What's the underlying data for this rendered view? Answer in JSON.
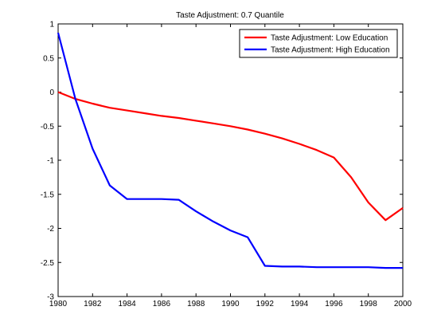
{
  "chart_data": {
    "type": "line",
    "title": "Taste Adjustment: 0.7 Quantile",
    "xlabel": "",
    "ylabel": "",
    "xlim": [
      1980,
      2000
    ],
    "ylim": [
      -3,
      1
    ],
    "xticks": [
      1980,
      1982,
      1984,
      1986,
      1988,
      1990,
      1992,
      1994,
      1996,
      1998,
      2000
    ],
    "xtick_labels": [
      "1980",
      "1982",
      "1984",
      "1986",
      "1988",
      "1990",
      "1992",
      "1994",
      "1996",
      "1998",
      "2000"
    ],
    "yticks": [
      1,
      0.5,
      0,
      -0.5,
      -1,
      -1.5,
      -2,
      -2.5,
      -3
    ],
    "ytick_labels": [
      "1",
      "0.5",
      "0",
      "-0.5",
      "-1",
      "-1.5",
      "-2",
      "-2.5",
      "-3"
    ],
    "grid": false,
    "legend_position": "top-right",
    "x": [
      1980,
      1981,
      1982,
      1983,
      1984,
      1985,
      1986,
      1987,
      1988,
      1989,
      1990,
      1991,
      1992,
      1993,
      1994,
      1995,
      1996,
      1997,
      1998,
      1999,
      2000
    ],
    "series": [
      {
        "name": "Taste Adjustment: Low Education",
        "color": "#ff0000",
        "values": [
          0.0,
          -0.1,
          -0.17,
          -0.23,
          -0.27,
          -0.31,
          -0.35,
          -0.38,
          -0.42,
          -0.46,
          -0.5,
          -0.55,
          -0.61,
          -0.68,
          -0.76,
          -0.85,
          -0.96,
          -1.25,
          -1.62,
          -1.88,
          -1.7
        ]
      },
      {
        "name": "Taste Adjustment: High Education",
        "color": "#0000ff",
        "values": [
          0.87,
          -0.1,
          -0.83,
          -1.37,
          -1.57,
          -1.57,
          -1.57,
          -1.58,
          -1.75,
          -1.9,
          -2.03,
          -2.13,
          -2.55,
          -2.56,
          -2.56,
          -2.57,
          -2.57,
          -2.57,
          -2.57,
          -2.58,
          -2.58
        ]
      }
    ]
  }
}
